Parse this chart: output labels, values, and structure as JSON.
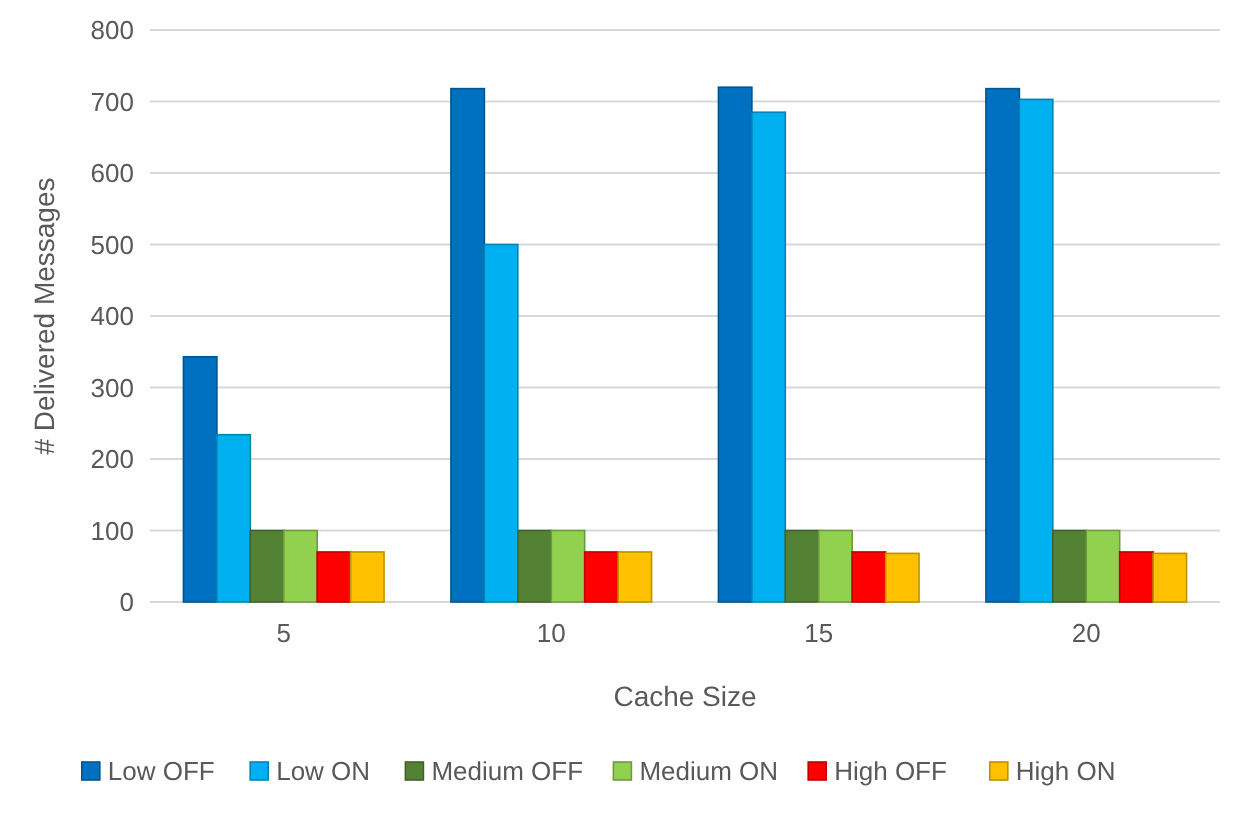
{
  "chart_data": {
    "type": "bar",
    "xlabel": "Cache Size",
    "ylabel": "# Delivered Messages",
    "categories": [
      "5",
      "10",
      "15",
      "20"
    ],
    "series": [
      {
        "name": "Low OFF",
        "color": "#0070c0",
        "values": [
          343,
          718,
          720,
          718
        ]
      },
      {
        "name": "Low ON",
        "color": "#00b0f0",
        "values": [
          234,
          500,
          685,
          703
        ]
      },
      {
        "name": "Medium OFF",
        "color": "#548235",
        "values": [
          100,
          100,
          100,
          100
        ]
      },
      {
        "name": "Medium ON",
        "color": "#92d050",
        "values": [
          100,
          100,
          100,
          100
        ]
      },
      {
        "name": "High OFF",
        "color": "#ff0000",
        "values": [
          70,
          70,
          70,
          70
        ]
      },
      {
        "name": "High ON",
        "color": "#ffc000",
        "values": [
          70,
          70,
          68,
          68
        ]
      }
    ],
    "ylim": [
      0,
      800
    ],
    "yticks": [
      0,
      100,
      200,
      300,
      400,
      500,
      600,
      700,
      800
    ],
    "grid": "y",
    "legend": "bottom"
  }
}
